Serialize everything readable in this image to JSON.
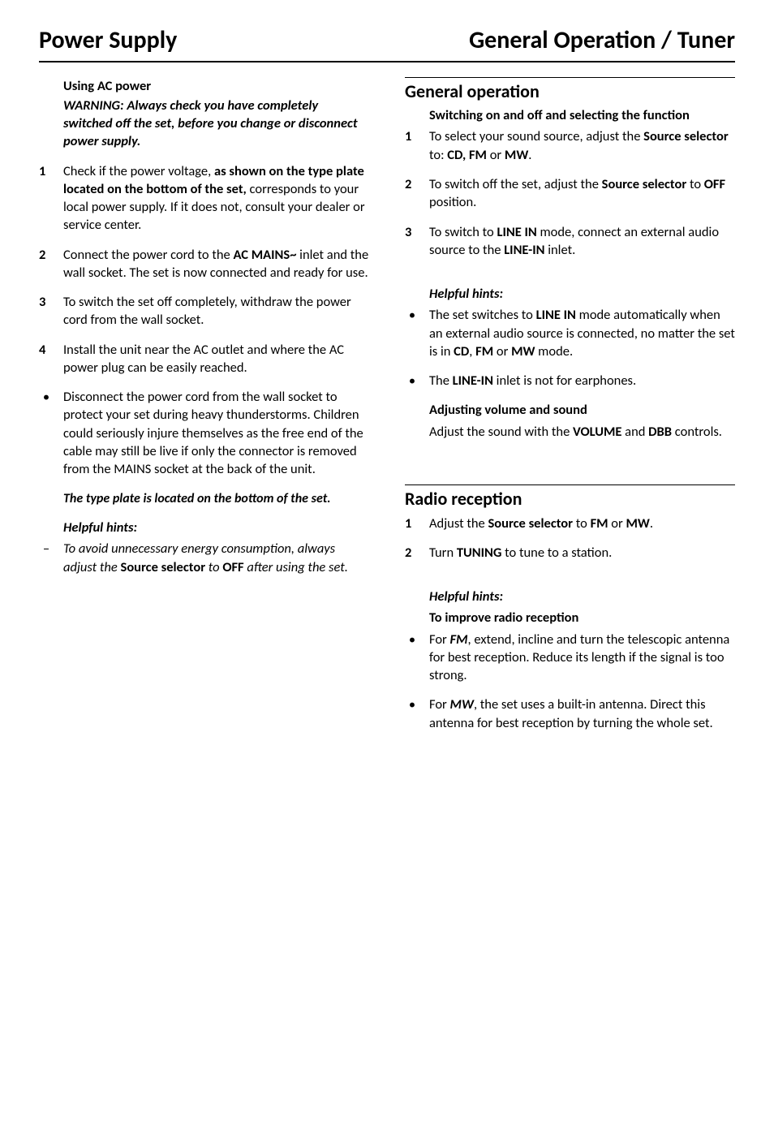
{
  "header": {
    "left": "Power Supply",
    "right": "General Operation / Tuner"
  },
  "left": {
    "usingAC": {
      "title": "Using AC power",
      "warning": "WARNING: Always check you have completely switched off the set, before you change or disconnect power supply.",
      "steps": [
        {
          "num": "1",
          "parts": [
            {
              "t": "Check if the power voltage, "
            },
            {
              "t": "as shown on the type plate located on the bottom of the set,",
              "style": "bold"
            },
            {
              "t": " corresponds to your local power supply. If it does not, consult your dealer or service center."
            }
          ]
        },
        {
          "num": "2",
          "parts": [
            {
              "t": "Connect the power cord to the "
            },
            {
              "t": "AC MAINS~",
              "style": "bold"
            },
            {
              "t": " inlet and the wall socket. The set is now connected and ready for use."
            }
          ]
        },
        {
          "num": "3",
          "parts": [
            {
              "t": "To switch the set off completely, withdraw the power cord from the wall socket."
            }
          ]
        },
        {
          "num": "4",
          "parts": [
            {
              "t": "Install the unit near the AC outlet and where the AC power plug can be easily reached."
            }
          ]
        }
      ],
      "bullets": [
        {
          "parts": [
            {
              "t": "Disconnect the power cord from the wall socket to protect your set during heavy thunderstorms. Children could seriously injure themselves as the free end of the cable may still be live if only the connector is removed from the MAINS socket at the back of the unit."
            }
          ]
        }
      ],
      "typePlate": "The type plate is located on the bottom of the set.",
      "helpfulTitle": "Helpful hints:",
      "helpfulItems": [
        {
          "parts": [
            {
              "t": "To avoid unnecessary energy consumption, always adjust the ",
              "style": "italic"
            },
            {
              "t": "Source selector",
              "style": "bold"
            },
            {
              "t": " to ",
              "style": "italic"
            },
            {
              "t": "OFF",
              "style": "bold"
            },
            {
              "t": " after using the set.",
              "style": "italic"
            }
          ]
        }
      ]
    }
  },
  "right": {
    "general": {
      "title": "General operation",
      "switchTitle": "Switching on and off and selecting the function",
      "steps": [
        {
          "num": "1",
          "parts": [
            {
              "t": "To select your sound source, adjust the "
            },
            {
              "t": "Source selector",
              "style": "bold"
            },
            {
              "t": " to: "
            },
            {
              "t": "CD, FM",
              "style": "bold"
            },
            {
              "t": " or "
            },
            {
              "t": "MW",
              "style": "bold"
            },
            {
              "t": "."
            }
          ]
        },
        {
          "num": "2",
          "parts": [
            {
              "t": "To switch off the set, adjust the "
            },
            {
              "t": "Source",
              "style": "bold"
            },
            {
              "t": " "
            },
            {
              "t": "selector",
              "style": "bold"
            },
            {
              "t": " to "
            },
            {
              "t": "OFF",
              "style": "bold"
            },
            {
              "t": " position."
            }
          ]
        },
        {
          "num": "3",
          "parts": [
            {
              "t": "To switch to "
            },
            {
              "t": "LINE IN",
              "style": "bold"
            },
            {
              "t": " mode, connect an external audio source to the "
            },
            {
              "t": "LINE-IN",
              "style": "bold"
            },
            {
              "t": " inlet."
            }
          ]
        }
      ],
      "helpfulTitle": "Helpful hints:",
      "helpfulBullets": [
        {
          "parts": [
            {
              "t": "The set switches to "
            },
            {
              "t": "LINE IN",
              "style": "bold"
            },
            {
              "t": " mode automatically when an external audio source is connected, no matter the set is in "
            },
            {
              "t": "CD",
              "style": "bold"
            },
            {
              "t": ", "
            },
            {
              "t": "FM",
              "style": "bold"
            },
            {
              "t": " or "
            },
            {
              "t": "MW",
              "style": "bold"
            },
            {
              "t": " mode."
            }
          ]
        },
        {
          "parts": [
            {
              "t": "The "
            },
            {
              "t": "LINE-IN",
              "style": "bold"
            },
            {
              "t": " inlet is not for earphones."
            }
          ]
        }
      ],
      "adjustTitle": "Adjusting volume and sound",
      "adjustText": [
        {
          "t": "Adjust the sound with the "
        },
        {
          "t": "VOLUME",
          "style": "bold"
        },
        {
          "t": " and "
        },
        {
          "t": "DBB",
          "style": "bold"
        },
        {
          "t": " controls."
        }
      ]
    },
    "radio": {
      "title": "Radio reception",
      "steps": [
        {
          "num": "1",
          "parts": [
            {
              "t": "Adjust the "
            },
            {
              "t": "Source selector",
              "style": "bold"
            },
            {
              "t": " to "
            },
            {
              "t": "FM",
              "style": "bold"
            },
            {
              "t": " or "
            },
            {
              "t": "MW",
              "style": "bold"
            },
            {
              "t": "."
            }
          ]
        },
        {
          "num": "2",
          "parts": [
            {
              "t": "Turn "
            },
            {
              "t": "TUNING",
              "style": "bold"
            },
            {
              "t": " to tune to a station."
            }
          ]
        }
      ],
      "helpfulTitle": "Helpful hints:",
      "improveTitle": "To improve radio reception",
      "improveBullets": [
        {
          "parts": [
            {
              "t": "For "
            },
            {
              "t": "FM",
              "style": "bold-italic"
            },
            {
              "t": ", extend, incline and turn the telescopic antenna for best reception. Reduce its length if the signal is too strong."
            }
          ]
        },
        {
          "parts": [
            {
              "t": "For "
            },
            {
              "t": "MW",
              "style": "bold-italic"
            },
            {
              "t": ", the set uses a built-in antenna. Direct this antenna for best reception by turning the whole set."
            }
          ]
        }
      ]
    }
  }
}
